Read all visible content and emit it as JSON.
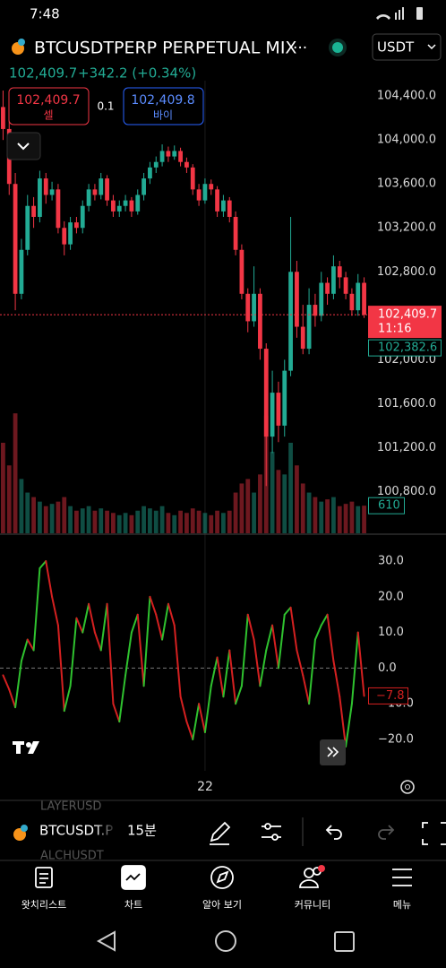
{
  "status_bar": {
    "time": "7:48"
  },
  "header": {
    "symbol_title": "BTCUSDTPERP PERPETUAL MIX",
    "more": "···",
    "currency": "USDT",
    "last_price": "102,409.7",
    "change": "+342.2 (+0.34%)"
  },
  "order": {
    "sell_price": "102,409.7",
    "sell_label": "셀",
    "quantity": "0.1",
    "buy_price": "102,409.8",
    "buy_label": "바이"
  },
  "chart_data": [
    {
      "type": "candlestick",
      "up_color": "#22ab94",
      "down_color": "#f23645",
      "ylim": [
        100420,
        104540
      ],
      "yticks": [
        {
          "value": 100800,
          "label": "100,800.0"
        },
        {
          "value": 101200,
          "label": "101,200.0"
        },
        {
          "value": 101600,
          "label": "101,600.0"
        },
        {
          "value": 102000,
          "label": "102,000.0"
        },
        {
          "value": 102800,
          "label": "102,800.0"
        },
        {
          "value": 103200,
          "label": "103,200.0"
        },
        {
          "value": 103600,
          "label": "103,600.0"
        },
        {
          "value": 104000,
          "label": "104,000.0"
        },
        {
          "value": 104400,
          "label": "104,400.0"
        }
      ],
      "candles": [
        [
          104300,
          104450,
          104000,
          104100
        ],
        [
          104100,
          104200,
          103500,
          103600
        ],
        [
          103600,
          103700,
          102450,
          102600
        ],
        [
          102600,
          103100,
          102550,
          103000
        ],
        [
          103000,
          103500,
          102950,
          103400
        ],
        [
          103400,
          103480,
          103200,
          103300
        ],
        [
          103300,
          103720,
          103250,
          103650
        ],
        [
          103650,
          103700,
          103420,
          103500
        ],
        [
          103500,
          103620,
          103450,
          103550
        ],
        [
          103550,
          103600,
          103150,
          103200
        ],
        [
          103200,
          103260,
          102950,
          103050
        ],
        [
          103050,
          103300,
          103000,
          103250
        ],
        [
          103250,
          103300,
          103150,
          103200
        ],
        [
          103200,
          103450,
          103150,
          103400
        ],
        [
          103400,
          103600,
          103350,
          103550
        ],
        [
          103550,
          103600,
          103450,
          103500
        ],
        [
          103500,
          103700,
          103460,
          103650
        ],
        [
          103650,
          103680,
          103400,
          103450
        ],
        [
          103450,
          103500,
          103300,
          103350
        ],
        [
          103350,
          103450,
          103300,
          103400
        ],
        [
          103400,
          103500,
          103350,
          103450
        ],
        [
          103450,
          103480,
          103300,
          103350
        ],
        [
          103350,
          103550,
          103320,
          103500
        ],
        [
          103500,
          103700,
          103450,
          103650
        ],
        [
          103650,
          103800,
          103600,
          103750
        ],
        [
          103750,
          103850,
          103700,
          103800
        ],
        [
          103800,
          103960,
          103760,
          103900
        ],
        [
          103900,
          103940,
          103800,
          103850
        ],
        [
          103850,
          103950,
          103820,
          103900
        ],
        [
          103900,
          103930,
          103760,
          103800
        ],
        [
          103800,
          103840,
          103700,
          103750
        ],
        [
          103750,
          103780,
          103500,
          103550
        ],
        [
          103550,
          103600,
          103400,
          103450
        ],
        [
          103450,
          103650,
          103420,
          103600
        ],
        [
          103600,
          103640,
          103500,
          103550
        ],
        [
          103550,
          103580,
          103300,
          103350
        ],
        [
          103350,
          103500,
          103300,
          103450
        ],
        [
          103450,
          103480,
          103250,
          103300
        ],
        [
          103300,
          103350,
          102950,
          103000
        ],
        [
          103000,
          103050,
          102550,
          102600
        ],
        [
          102600,
          102650,
          102250,
          102350
        ],
        [
          102350,
          102850,
          102300,
          102600
        ],
        [
          102600,
          102650,
          102000,
          102100
        ],
        [
          102100,
          102150,
          100850,
          101300
        ],
        [
          101300,
          101900,
          101150,
          101700
        ],
        [
          101700,
          101800,
          101250,
          101400
        ],
        [
          101400,
          102000,
          101300,
          101900
        ],
        [
          101900,
          103300,
          101850,
          102800
        ],
        [
          102800,
          102900,
          102200,
          102300
        ],
        [
          102300,
          102500,
          102050,
          102100
        ],
        [
          102100,
          102650,
          102050,
          102500
        ],
        [
          102500,
          102600,
          102300,
          102400
        ],
        [
          102400,
          102800,
          102350,
          102700
        ],
        [
          102700,
          102750,
          102500,
          102600
        ],
        [
          102600,
          102950,
          102550,
          102850
        ],
        [
          102850,
          102900,
          102650,
          102750
        ],
        [
          102750,
          102800,
          102550,
          102600
        ],
        [
          102600,
          102650,
          102400,
          102450
        ],
        [
          102450,
          102780,
          102400,
          102700
        ],
        [
          102700,
          102750,
          102380,
          102410
        ]
      ],
      "volumes": [
        2000,
        1500,
        2650,
        1200,
        900,
        800,
        700,
        600,
        650,
        700,
        800,
        600,
        500,
        550,
        600,
        500,
        550,
        500,
        450,
        400,
        450,
        400,
        500,
        600,
        550,
        500,
        600,
        450,
        400,
        500,
        450,
        550,
        500,
        450,
        400,
        500,
        450,
        500,
        900,
        1100,
        1200,
        900,
        1300,
        2600,
        1800,
        1400,
        1300,
        2000,
        1500,
        1100,
        900,
        800,
        700,
        750,
        800,
        600,
        650,
        700,
        600,
        610
      ],
      "vlim": [
        0,
        10000
      ],
      "x_label": "22",
      "last_price": {
        "value": 102409.7,
        "label": "102,409.7"
      },
      "countdown": "11:16",
      "mark_price": {
        "value": 102382.6,
        "label": "102,382.6"
      },
      "last_volume": 610
    },
    {
      "type": "line",
      "up_color": "#2fc22f",
      "down_color": "#d42020",
      "ylim": [
        -28.8,
        37.3
      ],
      "yticks": [
        {
          "value": -20,
          "label": "−20.0"
        },
        {
          "value": -10,
          "label": "−10.0"
        },
        {
          "value": 0,
          "label": "0.0"
        },
        {
          "value": 10,
          "label": "10.0"
        },
        {
          "value": 20,
          "label": "20.0"
        },
        {
          "value": 30,
          "label": "30.0"
        }
      ],
      "zero_line": true,
      "values": [
        -2,
        -6,
        -11,
        2,
        8,
        5,
        28,
        30,
        20,
        12,
        -12,
        -5,
        14,
        10,
        18,
        10,
        5,
        18,
        -10,
        -15,
        -2,
        10,
        15,
        -5,
        20,
        15,
        8,
        18,
        12,
        -8,
        -15,
        -20,
        -10,
        -18,
        -5,
        3,
        -8,
        5,
        -10,
        -5,
        15,
        8,
        -5,
        5,
        12,
        0,
        15,
        17,
        5,
        -2,
        -10,
        8,
        12,
        15,
        2,
        -8,
        -22,
        -10,
        10,
        -7.8
      ],
      "last_value": {
        "value": -7.8,
        "label": "−7.8"
      }
    }
  ],
  "toolbar": {
    "symbol": "BTCUSDT.P",
    "interval": "15분",
    "prev_symbol": "LAYERUSD",
    "next_symbol": "ALCHUSDT"
  },
  "nav": [
    "왓치리스트",
    "차트",
    "알아 보기",
    "커뮤니티",
    "메뉴"
  ]
}
